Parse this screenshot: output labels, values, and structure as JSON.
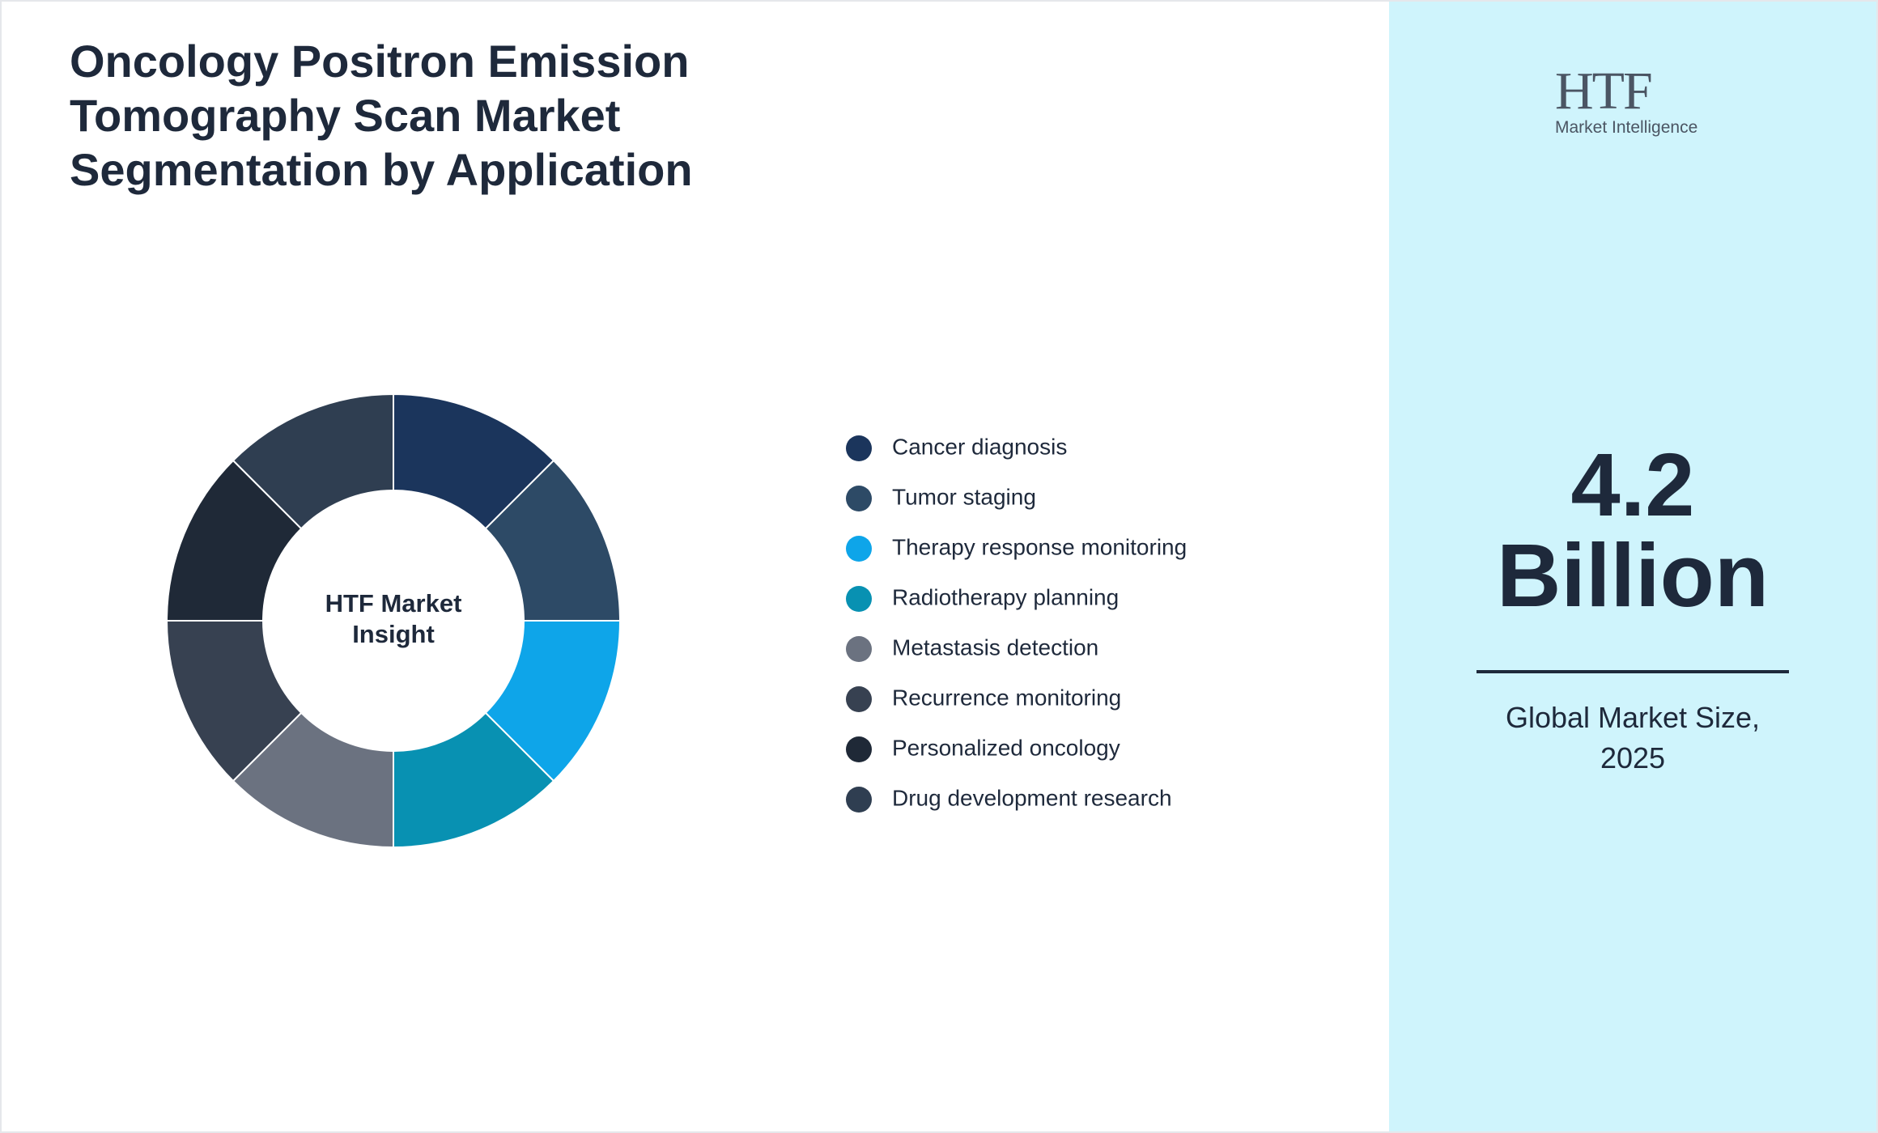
{
  "chart_data": {
    "type": "pie",
    "title": "Oncology Positron Emission Tomography Scan Market Segmentation by Application",
    "center_label": "HTF Market Insight",
    "categories": [
      "Cancer diagnosis",
      "Tumor staging",
      "Therapy response monitoring",
      "Radiotherapy planning",
      "Metastasis detection",
      "Recurrence monitoring",
      "Personalized oncology",
      "Drug development research"
    ],
    "values": [
      12.5,
      12.5,
      12.5,
      12.5,
      12.5,
      12.5,
      12.5,
      12.5
    ],
    "colors": [
      "#1b355c",
      "#2d4a66",
      "#0ea5e9",
      "#0891b2",
      "#6b7280",
      "#374151",
      "#1f2937",
      "#2f3e51"
    ],
    "legend": "right"
  },
  "panel": {
    "value": "4.2",
    "unit": "Billion",
    "caption": "Global Market Size, 2025"
  },
  "logo": {
    "mark": "HTF",
    "tagline": "Market Intelligence"
  }
}
